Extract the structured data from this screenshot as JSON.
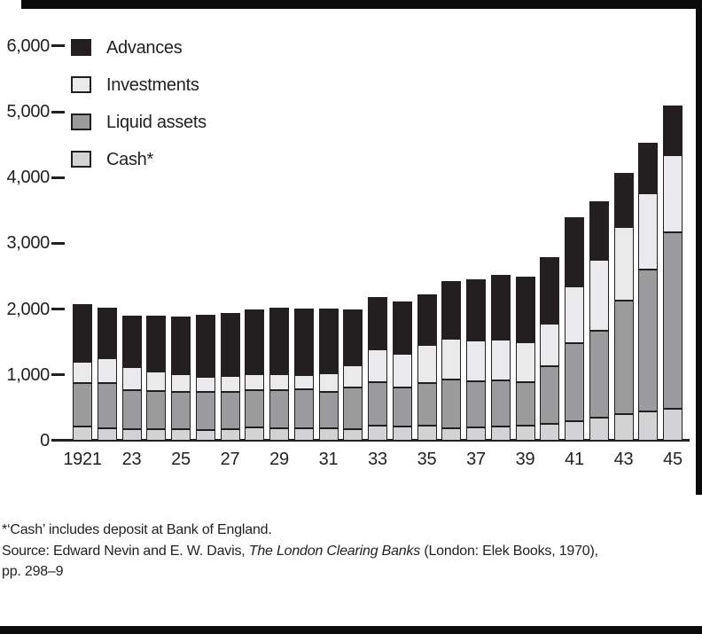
{
  "colors": {
    "ink": "#231f20",
    "page_background": "#ffffff",
    "scan_border": "#0b0b0b"
  },
  "chart_data": {
    "type": "bar",
    "stacked": true,
    "title": "",
    "xlabel": "",
    "ylabel": "",
    "grid": false,
    "legend_position": "top-left",
    "ylim": [
      0,
      6000
    ],
    "y_ticks": [
      0,
      1000,
      2000,
      3000,
      4000,
      5000,
      6000
    ],
    "y_tick_labels": [
      "0",
      "1,000",
      "2,000",
      "3,000",
      "4,000",
      "5,000",
      "6,000"
    ],
    "categories": [
      1921,
      1922,
      1923,
      1924,
      1925,
      1926,
      1927,
      1928,
      1929,
      1930,
      1931,
      1932,
      1933,
      1934,
      1935,
      1936,
      1937,
      1938,
      1939,
      1940,
      1941,
      1942,
      1943,
      1944,
      1945
    ],
    "x_tick_labels": [
      "1921",
      "23",
      "25",
      "27",
      "29",
      "31",
      "33",
      "35",
      "37",
      "39",
      "41",
      "43",
      "45"
    ],
    "stack_order": "bottom to top",
    "series": [
      {
        "name": "Cash*",
        "color": "#d3d3d5",
        "values": [
          210,
          195,
          175,
          175,
          170,
          160,
          170,
          205,
          195,
          195,
          185,
          170,
          225,
          220,
          225,
          195,
          200,
          210,
          230,
          255,
          290,
          345,
          400,
          445,
          490
        ]
      },
      {
        "name": "Liquid assets",
        "color": "#9b9b9d",
        "values": [
          670,
          680,
          600,
          575,
          565,
          575,
          575,
          565,
          580,
          590,
          560,
          635,
          660,
          595,
          650,
          740,
          710,
          700,
          655,
          875,
          1195,
          1330,
          1730,
          2160,
          2680
        ]
      },
      {
        "name": "Investments",
        "color": "#eaeaec",
        "values": [
          320,
          375,
          350,
          305,
          275,
          235,
          240,
          245,
          235,
          215,
          285,
          340,
          510,
          510,
          575,
          615,
          610,
          620,
          610,
          650,
          860,
          1075,
          1120,
          1150,
          1165
        ]
      },
      {
        "name": "Advances",
        "color": "#231f20",
        "values": [
          870,
          770,
          780,
          850,
          880,
          940,
          950,
          985,
          1015,
          1010,
          980,
          845,
          790,
          785,
          780,
          875,
          930,
          995,
          995,
          1015,
          1050,
          895,
          820,
          780,
          765
        ]
      }
    ],
    "legend": [
      {
        "label": "Advances",
        "color": "#231f20"
      },
      {
        "label": "Investments",
        "color": "#eaeaec"
      },
      {
        "label": "Liquid assets",
        "color": "#9b9b9d"
      },
      {
        "label": "Cash*",
        "color": "#d3d3d5"
      }
    ]
  },
  "footnotes": {
    "note": "*‘Cash’ includes deposit at Bank of England.",
    "source_prefix": "Source: Edward Nevin and E. W. Davis, ",
    "source_title": "The London Clearing Banks",
    "source_suffix": " (London: Elek Books, 1970),",
    "pages": "pp. 298–9"
  }
}
